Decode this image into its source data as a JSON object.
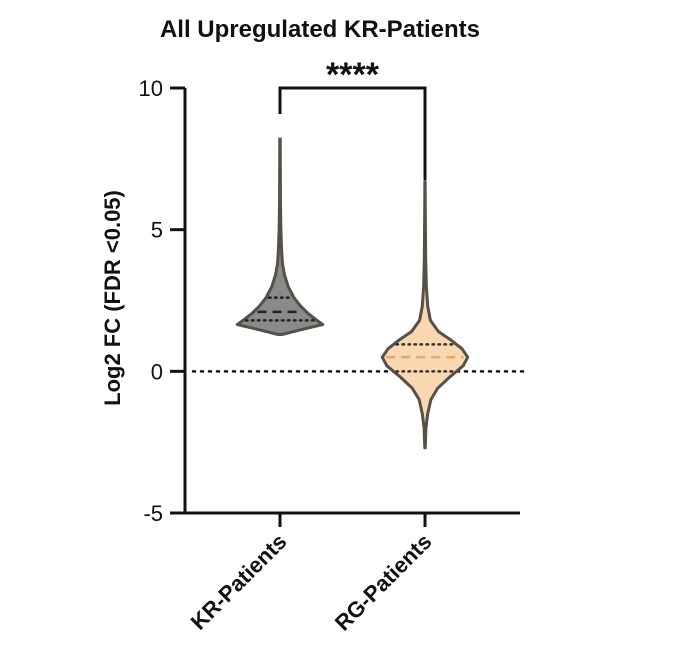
{
  "chart_data": {
    "type": "violin",
    "title": "All Upregulated KR-Patients",
    "ylabel": "Log2 FC (FDR <0.05)",
    "xlabel": "",
    "ylim": [
      -5,
      10
    ],
    "yticks": [
      "10",
      "5",
      "0",
      "-5"
    ],
    "reference_line_y": 0,
    "significance": {
      "label": "****",
      "from": "KR-Patients",
      "to": "RG-Patients",
      "y": 10
    },
    "colors": {
      "KR-Patients": "#8a8a8a",
      "RG-Patients": "#f9d7b0",
      "outline": "#555048",
      "rg_median": "#e9a66a"
    },
    "series": [
      {
        "name": "KR-Patients",
        "min": 1.3,
        "max": 8.2,
        "q1": 1.8,
        "median": 2.1,
        "q3": 2.6,
        "density": [
          [
            1.3,
            0.04
          ],
          [
            1.5,
            0.55
          ],
          [
            1.65,
            0.95
          ],
          [
            1.85,
            0.78
          ],
          [
            2.05,
            0.62
          ],
          [
            2.3,
            0.46
          ],
          [
            2.6,
            0.31
          ],
          [
            3.0,
            0.18
          ],
          [
            3.4,
            0.1
          ],
          [
            3.8,
            0.055
          ],
          [
            4.3,
            0.035
          ],
          [
            5.0,
            0.02
          ],
          [
            6.0,
            0.01
          ],
          [
            8.2,
            0.005
          ]
        ]
      },
      {
        "name": "RG-Patients",
        "min": -2.7,
        "max": 6.7,
        "q1": 0.0,
        "median": 0.5,
        "q3": 0.95,
        "density": [
          [
            -2.7,
            0.005
          ],
          [
            -2.0,
            0.02
          ],
          [
            -1.5,
            0.06
          ],
          [
            -1.0,
            0.13
          ],
          [
            -0.6,
            0.28
          ],
          [
            -0.2,
            0.55
          ],
          [
            0.2,
            0.85
          ],
          [
            0.5,
            0.95
          ],
          [
            0.8,
            0.82
          ],
          [
            1.1,
            0.58
          ],
          [
            1.4,
            0.3
          ],
          [
            1.8,
            0.12
          ],
          [
            2.3,
            0.06
          ],
          [
            3.0,
            0.03
          ],
          [
            4.0,
            0.015
          ],
          [
            5.0,
            0.01
          ],
          [
            6.0,
            0.005
          ],
          [
            6.7,
            0.003
          ]
        ]
      }
    ]
  }
}
